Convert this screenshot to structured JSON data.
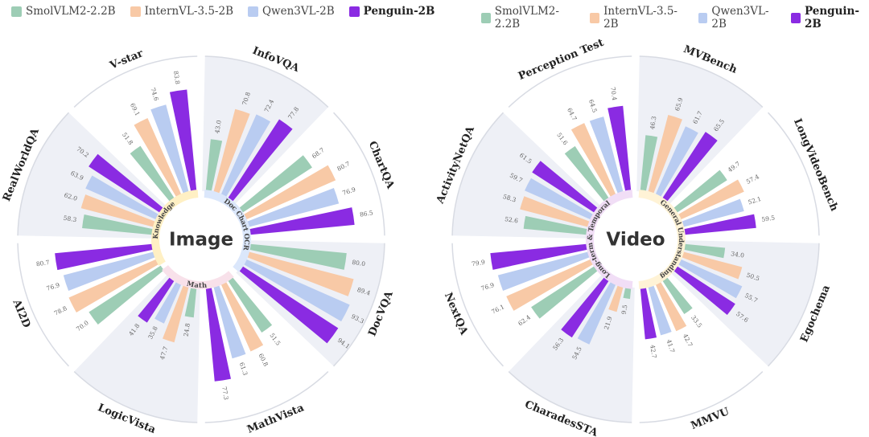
{
  "colors": {
    "SmolVLM2-2.2B": "#9dcdb5",
    "InternVL-3.5-2B": "#f8c9a6",
    "Qwen3VL-2B": "#b9ccf1",
    "Penguin-2B": "#8a2be2"
  },
  "chart_data": [
    {
      "type": "radial-bar",
      "title": "Image",
      "series": [
        {
          "name": "SmolVLM2-2.2B"
        },
        {
          "name": "InternVL-3.5-2B"
        },
        {
          "name": "Qwen3VL-2B"
        },
        {
          "name": "Penguin-2B"
        }
      ],
      "groups": [
        {
          "label": "Knowledge",
          "color": "#fff0c4",
          "benchmarks": [
            "V-star",
            "RealWorldQA"
          ]
        },
        {
          "label": "Doc Chart OCR",
          "color": "#dbe7fb",
          "benchmarks": [
            "InfoVQA",
            "ChartQA",
            "DocVQA"
          ]
        },
        {
          "label": "Math",
          "color": "#f8e1ea",
          "benchmarks": [
            "MathVista",
            "LogicVista",
            "AI2D"
          ]
        }
      ],
      "benchmarks": [
        {
          "name": "InfoVQA",
          "shaded": true,
          "values": [
            43.0,
            70.8,
            72.4,
            77.8
          ]
        },
        {
          "name": "ChartQA",
          "shaded": false,
          "values": [
            68.7,
            80.7,
            76.9,
            86.5
          ]
        },
        {
          "name": "DocVQA",
          "shaded": true,
          "values": [
            80.0,
            89.4,
            93.3,
            94.1
          ]
        },
        {
          "name": "MathVista",
          "shaded": false,
          "values": [
            51.5,
            60.8,
            61.3,
            77.3
          ]
        },
        {
          "name": "LogicVista",
          "shaded": true,
          "values": [
            24.8,
            47.7,
            35.8,
            41.8
          ]
        },
        {
          "name": "AI2D",
          "shaded": false,
          "values": [
            70.0,
            78.8,
            76.9,
            80.7
          ]
        },
        {
          "name": "RealWorldQA",
          "shaded": true,
          "values": [
            58.3,
            62.0,
            63.9,
            70.2
          ]
        },
        {
          "name": "V-star",
          "shaded": false,
          "values": [
            51.8,
            69.1,
            74.6,
            83.8
          ]
        }
      ]
    },
    {
      "type": "radial-bar",
      "title": "Video",
      "series": [
        {
          "name": "SmolVLM2-2.2B"
        },
        {
          "name": "InternVL-3.5-2B"
        },
        {
          "name": "Qwen3VL-2B"
        },
        {
          "name": "Penguin-2B"
        }
      ],
      "groups": [
        {
          "label": "General Understanding",
          "color": "#fff3d6",
          "benchmarks": [
            "MVBench",
            "LongVideoBench",
            "Egochema",
            "MMVU"
          ]
        },
        {
          "label": "Long-term & Temporal",
          "color": "#f1def6",
          "benchmarks": [
            "CharadesSTA",
            "NextQA",
            "ActivityNetQA",
            "Perception Test"
          ]
        }
      ],
      "benchmarks": [
        {
          "name": "MVBench",
          "shaded": true,
          "values": [
            46.3,
            65.9,
            61.7,
            65.5
          ]
        },
        {
          "name": "LongVideoBench",
          "shaded": false,
          "values": [
            49.7,
            57.4,
            52.1,
            59.5
          ]
        },
        {
          "name": "Egochema",
          "shaded": true,
          "values": [
            34.0,
            50.5,
            55.7,
            57.6
          ]
        },
        {
          "name": "MMVU",
          "shaded": false,
          "values": [
            33.5,
            42.7,
            41.7,
            42.7
          ]
        },
        {
          "name": "CharadesSTA",
          "shaded": true,
          "values": [
            9.5,
            21.9,
            54.5,
            56.3
          ]
        },
        {
          "name": "NextQA",
          "shaded": false,
          "values": [
            62.4,
            76.1,
            76.9,
            79.9
          ]
        },
        {
          "name": "ActivityNetQA",
          "shaded": true,
          "values": [
            52.6,
            58.3,
            59.7,
            61.5
          ]
        },
        {
          "name": "Perception Test",
          "shaded": false,
          "values": [
            51.6,
            64.7,
            64.5,
            70.4
          ]
        }
      ]
    }
  ]
}
